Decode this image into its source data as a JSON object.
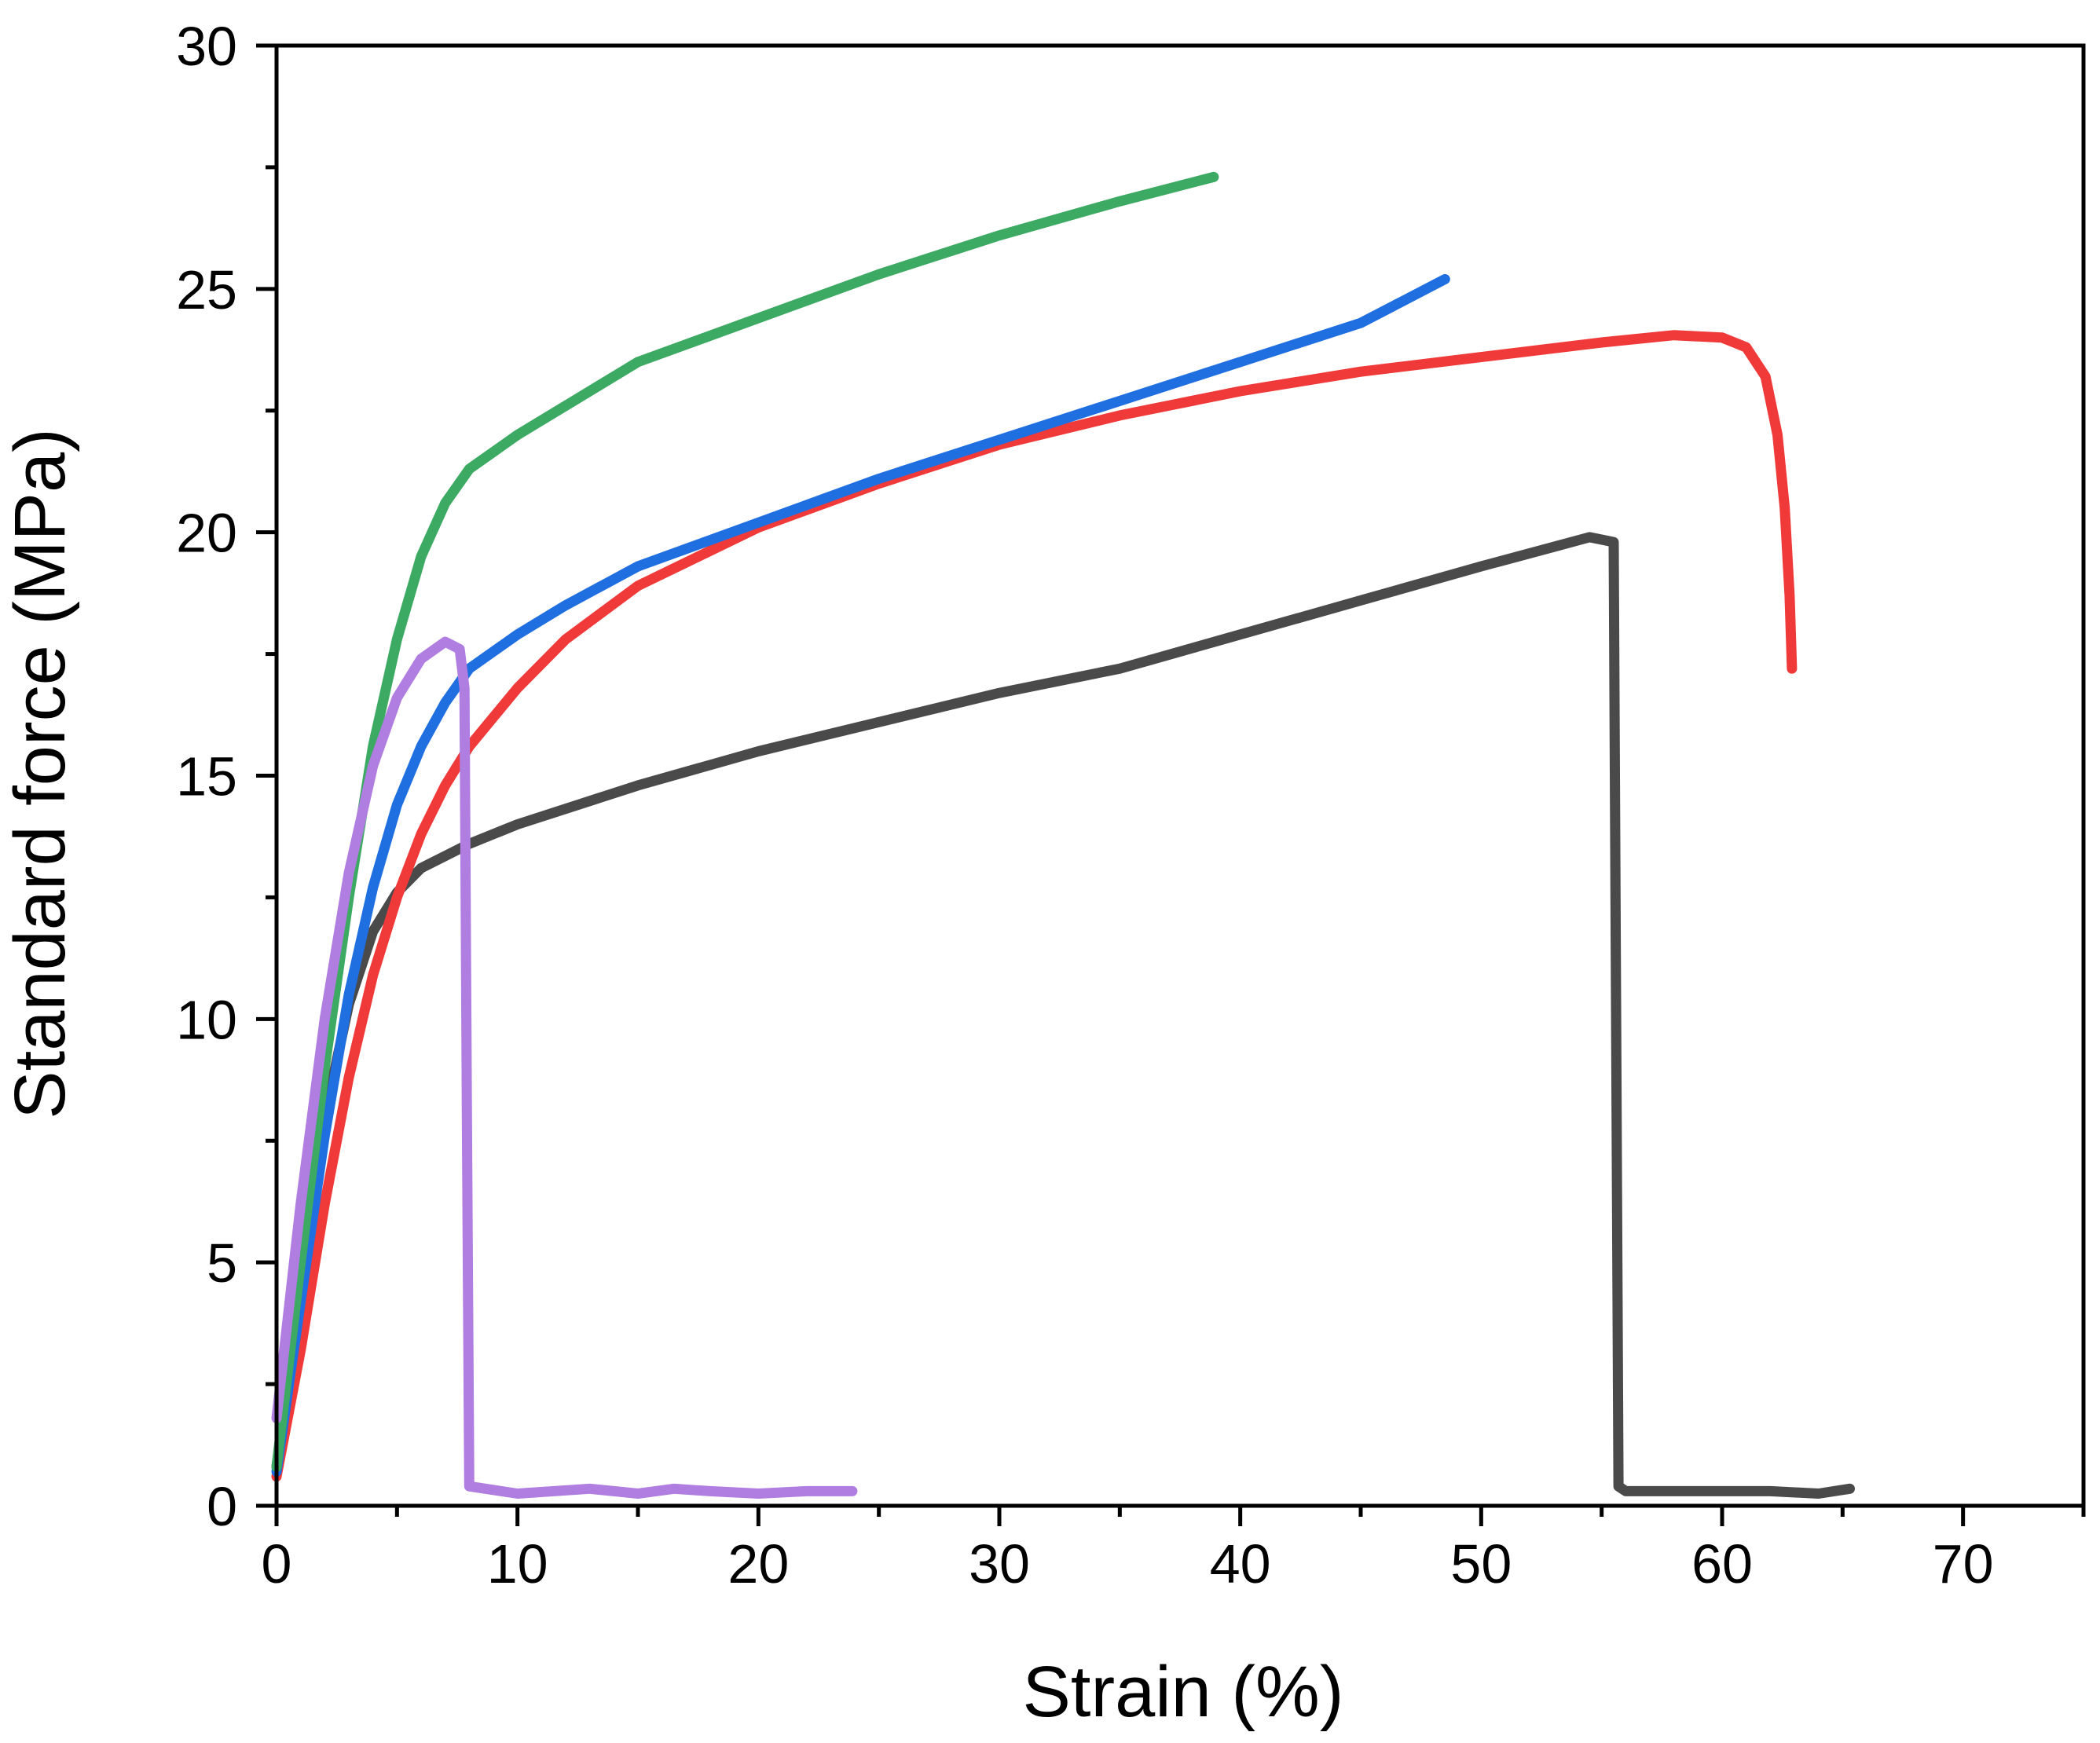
{
  "chart_data": {
    "type": "line",
    "title": "",
    "xlabel": "Strain (%)",
    "ylabel": "Standard force (MPa)",
    "xlim": [
      0,
      75
    ],
    "ylim": [
      0,
      30
    ],
    "xticks": [
      0,
      10,
      20,
      30,
      40,
      50,
      60,
      70
    ],
    "yticks": [
      0,
      5,
      10,
      15,
      20,
      25,
      30
    ],
    "xtick_labels": [
      "0",
      "10",
      "20",
      "30",
      "40",
      "50",
      "60",
      "70"
    ],
    "ytick_labels": [
      "0",
      "5",
      "10",
      "15",
      "20",
      "25",
      "30"
    ],
    "grid": false,
    "legend": false,
    "series": [
      {
        "name": "gray",
        "color": "#4a4a4a",
        "points": [
          [
            0,
            0.8
          ],
          [
            1,
            4.5
          ],
          [
            2,
            8.0
          ],
          [
            3,
            10.3
          ],
          [
            4,
            11.8
          ],
          [
            5,
            12.6
          ],
          [
            6,
            13.1
          ],
          [
            8,
            13.6
          ],
          [
            10,
            14.0
          ],
          [
            15,
            14.8
          ],
          [
            20,
            15.5
          ],
          [
            25,
            16.1
          ],
          [
            30,
            16.7
          ],
          [
            35,
            17.2
          ],
          [
            40,
            17.9
          ],
          [
            45,
            18.6
          ],
          [
            50,
            19.3
          ],
          [
            53,
            19.7
          ],
          [
            54.5,
            19.9
          ],
          [
            55.5,
            19.8
          ],
          [
            55.6,
            10.0
          ],
          [
            55.7,
            0.4
          ],
          [
            56,
            0.3
          ],
          [
            60,
            0.3
          ],
          [
            62,
            0.3
          ],
          [
            64,
            0.25
          ],
          [
            65.3,
            0.35
          ]
        ]
      },
      {
        "name": "red",
        "color": "#f03a3a",
        "points": [
          [
            0,
            0.6
          ],
          [
            1,
            3.2
          ],
          [
            2,
            6.2
          ],
          [
            3,
            8.8
          ],
          [
            4,
            10.9
          ],
          [
            5,
            12.5
          ],
          [
            6,
            13.8
          ],
          [
            7,
            14.8
          ],
          [
            8,
            15.6
          ],
          [
            10,
            16.8
          ],
          [
            12,
            17.8
          ],
          [
            15,
            18.9
          ],
          [
            20,
            20.1
          ],
          [
            25,
            21.0
          ],
          [
            30,
            21.8
          ],
          [
            35,
            22.4
          ],
          [
            40,
            22.9
          ],
          [
            45,
            23.3
          ],
          [
            50,
            23.6
          ],
          [
            55,
            23.9
          ],
          [
            58,
            24.05
          ],
          [
            60,
            24.0
          ],
          [
            61,
            23.8
          ],
          [
            61.8,
            23.2
          ],
          [
            62.3,
            22.0
          ],
          [
            62.6,
            20.5
          ],
          [
            62.8,
            18.7
          ],
          [
            62.9,
            17.2
          ]
        ]
      },
      {
        "name": "blue",
        "color": "#1f6fe0",
        "points": [
          [
            0,
            0.7
          ],
          [
            1,
            4.2
          ],
          [
            2,
            7.6
          ],
          [
            3,
            10.5
          ],
          [
            4,
            12.7
          ],
          [
            5,
            14.4
          ],
          [
            6,
            15.6
          ],
          [
            7,
            16.5
          ],
          [
            8,
            17.2
          ],
          [
            10,
            17.9
          ],
          [
            12,
            18.5
          ],
          [
            15,
            19.3
          ],
          [
            20,
            20.2
          ],
          [
            25,
            21.1
          ],
          [
            30,
            21.9
          ],
          [
            35,
            22.7
          ],
          [
            40,
            23.5
          ],
          [
            45,
            24.3
          ],
          [
            48.5,
            25.2
          ]
        ]
      },
      {
        "name": "green",
        "color": "#3caa63",
        "points": [
          [
            0,
            0.8
          ],
          [
            1,
            5.0
          ],
          [
            2,
            9.0
          ],
          [
            3,
            12.5
          ],
          [
            4,
            15.6
          ],
          [
            5,
            17.8
          ],
          [
            6,
            19.5
          ],
          [
            7,
            20.6
          ],
          [
            8,
            21.3
          ],
          [
            10,
            22.0
          ],
          [
            12,
            22.6
          ],
          [
            15,
            23.5
          ],
          [
            20,
            24.4
          ],
          [
            25,
            25.3
          ],
          [
            30,
            26.1
          ],
          [
            35,
            26.8
          ],
          [
            38.9,
            27.3
          ]
        ]
      },
      {
        "name": "purple",
        "color": "#b07ee0",
        "points": [
          [
            0,
            1.8
          ],
          [
            0.5,
            4.0
          ],
          [
            1,
            6.2
          ],
          [
            2,
            10.0
          ],
          [
            3,
            13.0
          ],
          [
            4,
            15.2
          ],
          [
            5,
            16.6
          ],
          [
            6,
            17.4
          ],
          [
            7,
            17.75
          ],
          [
            7.6,
            17.6
          ],
          [
            7.8,
            16.8
          ],
          [
            7.9,
            8.0
          ],
          [
            8.0,
            0.4
          ],
          [
            10,
            0.25
          ],
          [
            13,
            0.35
          ],
          [
            15,
            0.25
          ],
          [
            16.5,
            0.35
          ],
          [
            18,
            0.3
          ],
          [
            20,
            0.25
          ],
          [
            22,
            0.3
          ],
          [
            23.9,
            0.3
          ]
        ]
      }
    ]
  }
}
